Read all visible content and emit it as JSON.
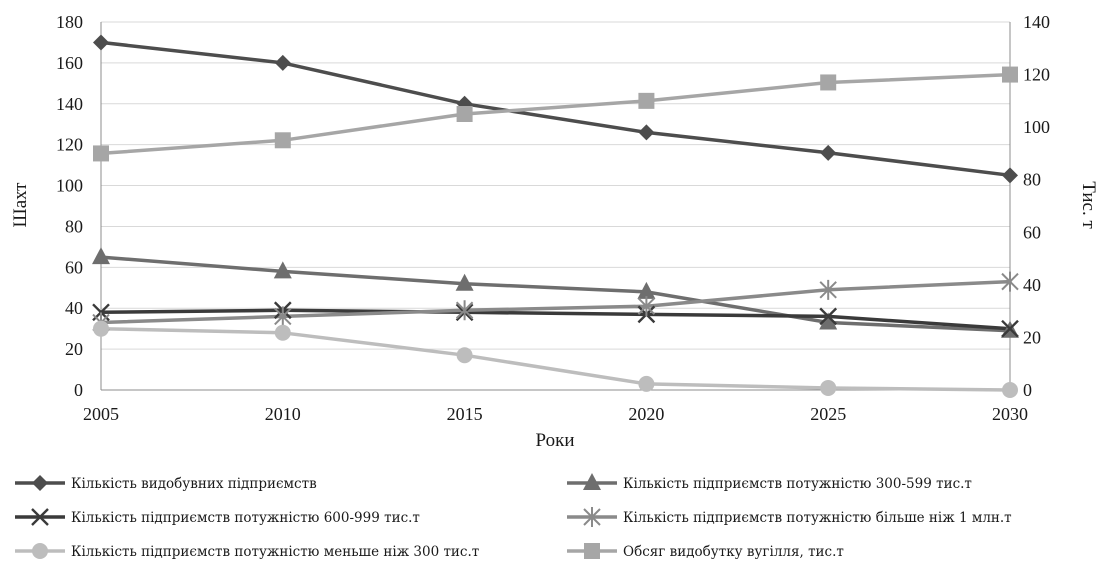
{
  "chart_data": {
    "type": "line",
    "x": [
      2005,
      2010,
      2015,
      2020,
      2025,
      2030
    ],
    "xlabel": "Роки",
    "ylabel_left": "Шахт",
    "ylabel_right": "Тис. т",
    "ylim_left": [
      0,
      180
    ],
    "ylim_right": [
      0,
      140
    ],
    "yticks_left": [
      0,
      20,
      40,
      60,
      80,
      100,
      120,
      140,
      160,
      180
    ],
    "yticks_right": [
      0,
      20,
      40,
      60,
      80,
      100,
      120,
      140
    ],
    "grid": "horizontal",
    "legend_position": "bottom",
    "series": [
      {
        "name": "Кількість видобувних підприємств",
        "axis": "left",
        "marker": "diamond",
        "color": "#4d4d4d",
        "values": [
          170,
          160,
          140,
          126,
          116,
          105
        ]
      },
      {
        "name": "Кількість підприємств потужністю  300-599 тис.т",
        "axis": "left",
        "marker": "triangle",
        "color": "#6e6e6e",
        "values": [
          65,
          58,
          52,
          48,
          33,
          29
        ]
      },
      {
        "name": "Кількість підприємств потужністю  600-999 тис.т",
        "axis": "left",
        "marker": "x",
        "color": "#3a3a3a",
        "values": [
          38,
          39,
          38,
          37,
          36,
          30
        ]
      },
      {
        "name": "Кількість підприємств потужністю  більше ніж 1 млн.т",
        "axis": "left",
        "marker": "star",
        "color": "#8a8a8a",
        "values": [
          33,
          36,
          39,
          41,
          49,
          53
        ]
      },
      {
        "name": "Кількість підприємств потужністю  меньше ніж 300 тис.т",
        "axis": "left",
        "marker": "circle",
        "color": "#bdbdbd",
        "values": [
          30,
          28,
          17,
          3,
          1,
          0
        ]
      },
      {
        "name": "Обсяг видобутку вугілля, тис.т",
        "axis": "right",
        "marker": "square",
        "color": "#a6a6a6",
        "values": [
          90,
          95,
          105,
          110,
          117,
          120
        ]
      }
    ]
  }
}
